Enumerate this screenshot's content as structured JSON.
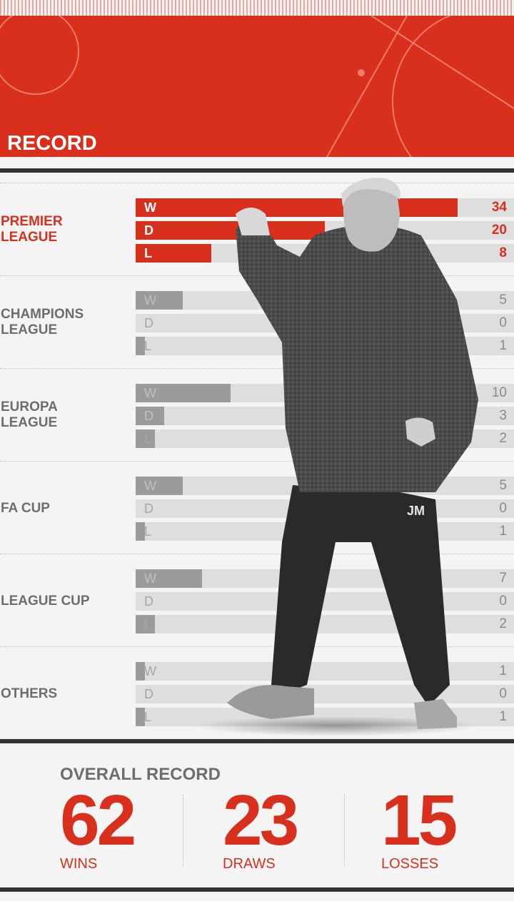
{
  "header": {
    "title": "RECORD"
  },
  "colors": {
    "accent": "#d9301e",
    "muted_bar": "#9b9b9b",
    "track": "#dedede",
    "text_muted": "#6d6d6d"
  },
  "chart_data": {
    "type": "bar",
    "orientation": "horizontal",
    "xlim": [
      0,
      40
    ],
    "categories": [
      "W",
      "D",
      "L"
    ],
    "groups": [
      {
        "name_lines": [
          "PREMIER",
          "LEAGUE"
        ],
        "values": [
          34,
          20,
          8
        ]
      },
      {
        "name_lines": [
          "CHAMPIONS",
          "LEAGUE"
        ],
        "values": [
          5,
          0,
          1
        ]
      },
      {
        "name_lines": [
          "EUROPA",
          "LEAGUE"
        ],
        "values": [
          10,
          3,
          2
        ]
      },
      {
        "name_lines": [
          "FA CUP"
        ],
        "values": [
          5,
          0,
          1
        ]
      },
      {
        "name_lines": [
          "LEAGUE CUP"
        ],
        "values": [
          7,
          0,
          2
        ]
      },
      {
        "name_lines": [
          "OTHERS"
        ],
        "values": [
          1,
          0,
          1
        ]
      }
    ]
  },
  "overall": {
    "title": "OVERALL RECORD",
    "stats": [
      {
        "value": "62",
        "label": "WINS"
      },
      {
        "value": "23",
        "label": "DRAWS"
      },
      {
        "value": "15",
        "label": "LOSSES"
      }
    ]
  },
  "player_image": {
    "initials": "JM"
  }
}
